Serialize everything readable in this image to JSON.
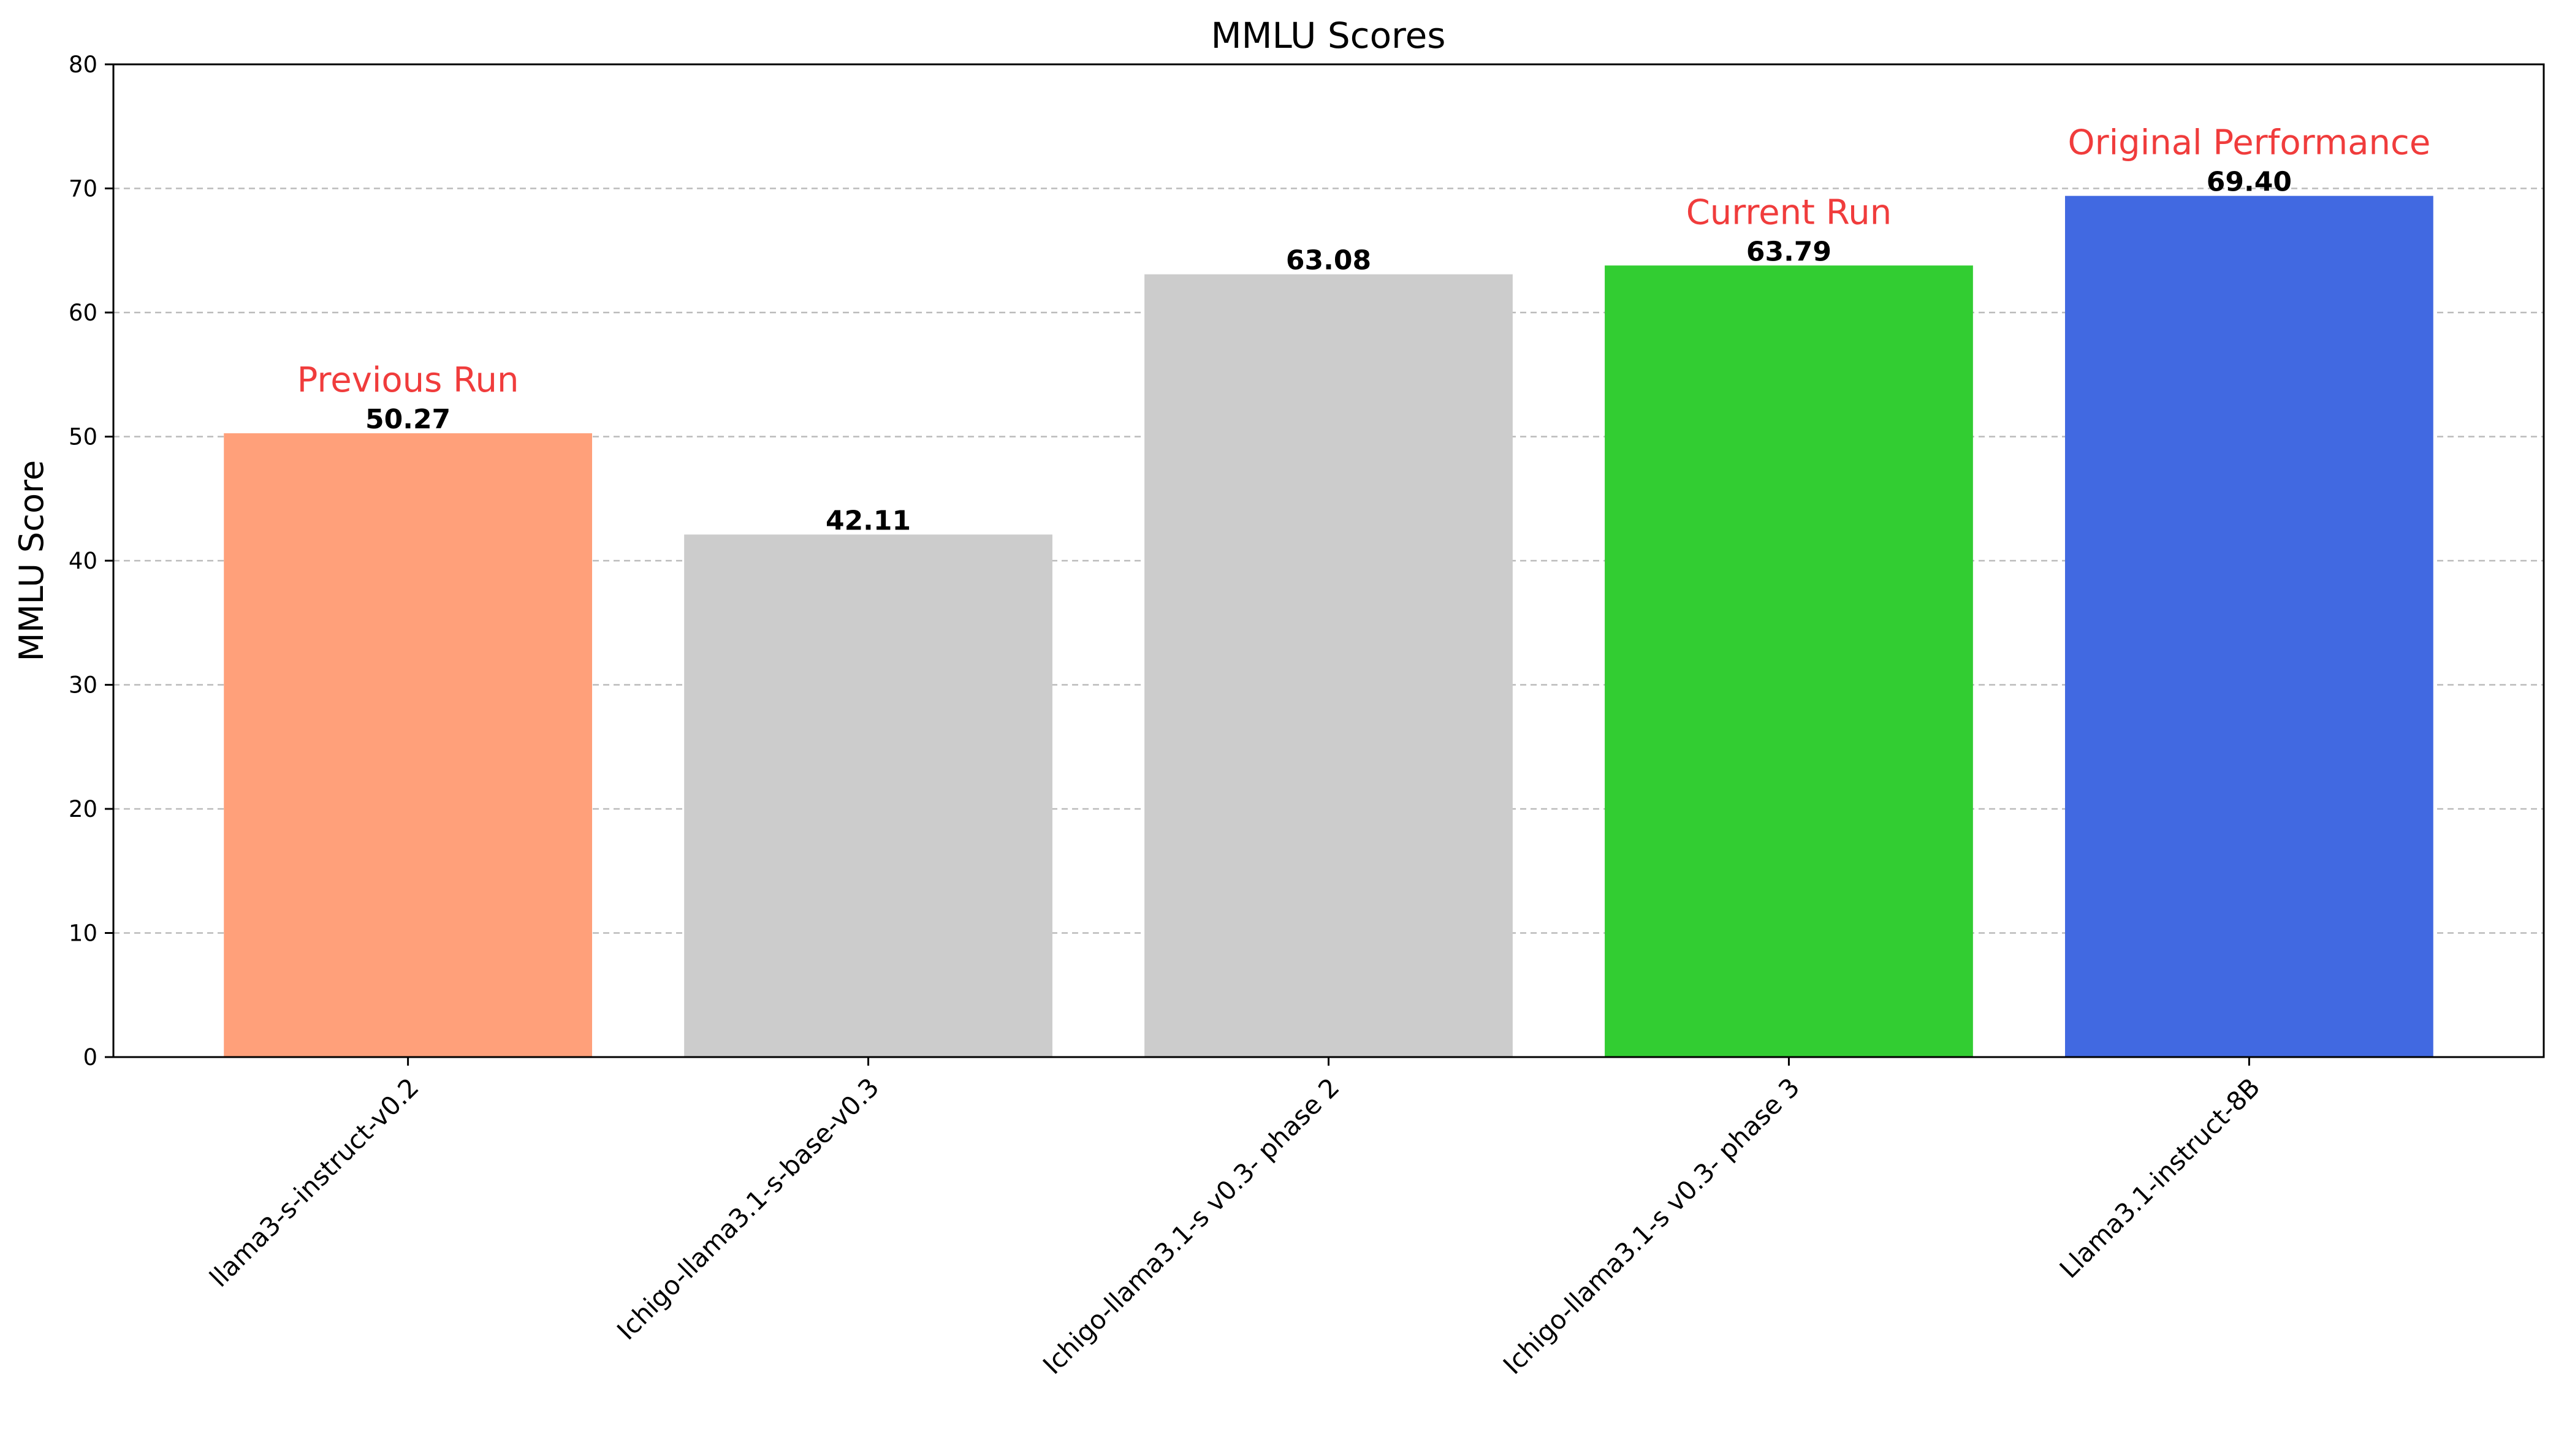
{
  "chart_data": {
    "type": "bar",
    "title": "MMLU Scores",
    "xlabel": "",
    "ylabel": "MMLU Score",
    "ylim": [
      0,
      80
    ],
    "yticks": [
      0,
      10,
      20,
      30,
      40,
      50,
      60,
      70,
      80
    ],
    "grid": "y, dashed",
    "categories": [
      "llama3-s-instruct-v0.2",
      "Ichigo-llama3.1-s-base-v0.3",
      "Ichigo-llama3.1-s v0.3- phase 2",
      "Ichigo-llama3.1-s v0.3- phase 3",
      "Llama3.1-instruct-8B"
    ],
    "values": [
      50.27,
      42.11,
      63.08,
      63.79,
      69.4
    ],
    "value_labels": [
      "50.27",
      "42.11",
      "63.08",
      "63.79",
      "69.40"
    ],
    "colors": [
      "#FFA07A",
      "#CCCCCC",
      "#CCCCCC",
      "#32CD32",
      "#4169E1"
    ],
    "annotations": [
      {
        "category_index": 0,
        "text": "Previous Run"
      },
      {
        "category_index": 3,
        "text": "Current Run"
      },
      {
        "category_index": 4,
        "text": "Original Performance"
      }
    ],
    "annotation_color": "#F03C3C"
  }
}
